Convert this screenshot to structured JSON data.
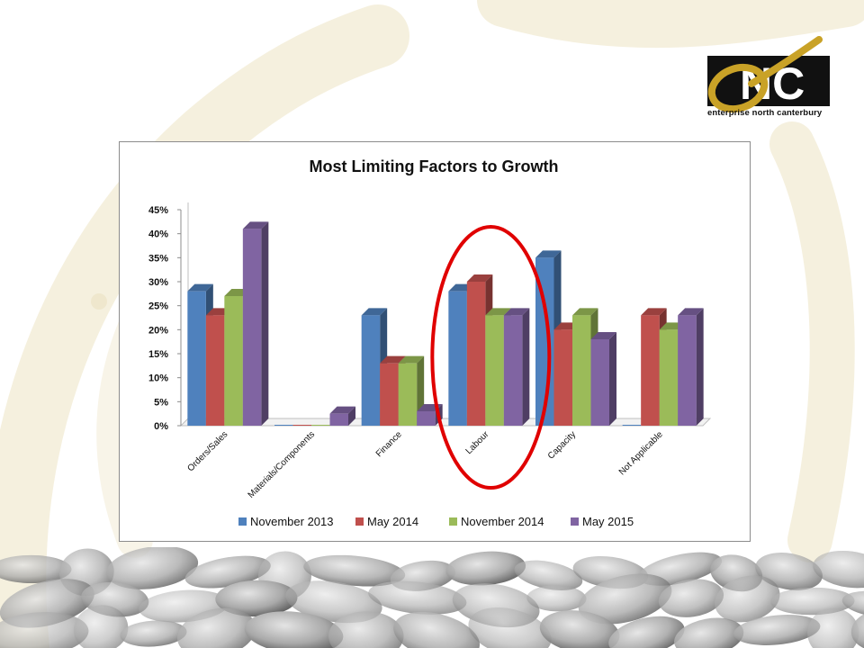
{
  "logo": {
    "letters": "NC",
    "caption": "enterprise north canterbury",
    "colors": {
      "gold": "#c9a227",
      "black": "#111111"
    }
  },
  "chart_data": {
    "type": "bar",
    "title": "Most Limiting Factors to Growth",
    "categories": [
      "Orders/Sales",
      "Materials/Components",
      "Finance",
      "Labour",
      "Capacity",
      "Not Applicable"
    ],
    "series": [
      {
        "name": "November 2013",
        "color": "#4f81bd",
        "values": [
          28,
          0,
          23,
          28,
          35,
          0
        ]
      },
      {
        "name": "May 2014",
        "color": "#c0504d",
        "values": [
          23,
          0,
          13,
          30,
          20,
          23
        ]
      },
      {
        "name": "November 2014",
        "color": "#9bbb59",
        "values": [
          27,
          0,
          13,
          23,
          23,
          20
        ]
      },
      {
        "name": "May 2015",
        "color": "#8064a2",
        "values": [
          41,
          2.5,
          3,
          23,
          18,
          23
        ]
      }
    ],
    "ylim": [
      0,
      45
    ],
    "yticks": [
      "0%",
      "5%",
      "10%",
      "15%",
      "20%",
      "25%",
      "30%",
      "35%",
      "40%",
      "45%"
    ],
    "y_unit": "%",
    "legend_position": "bottom",
    "annotation": {
      "shape": "ellipse",
      "color": "#e00000",
      "category": "Labour"
    }
  }
}
